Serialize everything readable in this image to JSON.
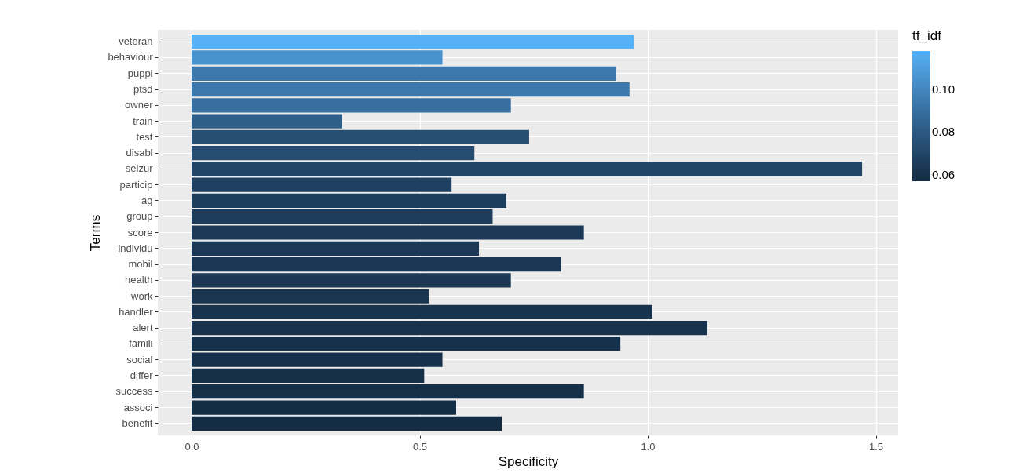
{
  "chart_data": {
    "type": "bar",
    "orientation": "horizontal",
    "xlabel": "Specificity",
    "ylabel": "Terms",
    "clabel": "tf_idf",
    "categories": [
      "veteran",
      "behaviour",
      "puppi",
      "ptsd",
      "owner",
      "train",
      "test",
      "disabl",
      "seizur",
      "particip",
      "ag",
      "group",
      "score",
      "individu",
      "mobil",
      "health",
      "work",
      "handler",
      "alert",
      "famili",
      "social",
      "differ",
      "success",
      "associ",
      "benefit"
    ],
    "values": [
      0.97,
      0.55,
      0.93,
      0.96,
      0.7,
      0.33,
      0.74,
      0.62,
      1.47,
      0.57,
      0.69,
      0.66,
      0.86,
      0.63,
      0.81,
      0.7,
      0.52,
      1.01,
      1.13,
      0.94,
      0.55,
      0.51,
      0.86,
      0.58,
      0.68
    ],
    "cvalues": [
      0.118,
      0.105,
      0.094,
      0.094,
      0.09,
      0.082,
      0.075,
      0.074,
      0.07,
      0.068,
      0.067,
      0.066,
      0.065,
      0.064,
      0.063,
      0.063,
      0.062,
      0.061,
      0.061,
      0.06,
      0.06,
      0.059,
      0.059,
      0.058,
      0.057
    ],
    "clim": [
      0.057,
      0.118
    ],
    "cticks": [
      0.06,
      0.08,
      {
        "value": 0.1,
        "label": "0.10"
      }
    ],
    "xlim": [
      -0.074,
      1.549
    ],
    "xticks": [
      {
        "value": 0,
        "label": "0.0"
      },
      {
        "value": 0.5,
        "label": "0.5"
      },
      {
        "value": 1,
        "label": "1.0"
      },
      {
        "value": 1.5,
        "label": "1.5"
      }
    ],
    "grid": true
  }
}
